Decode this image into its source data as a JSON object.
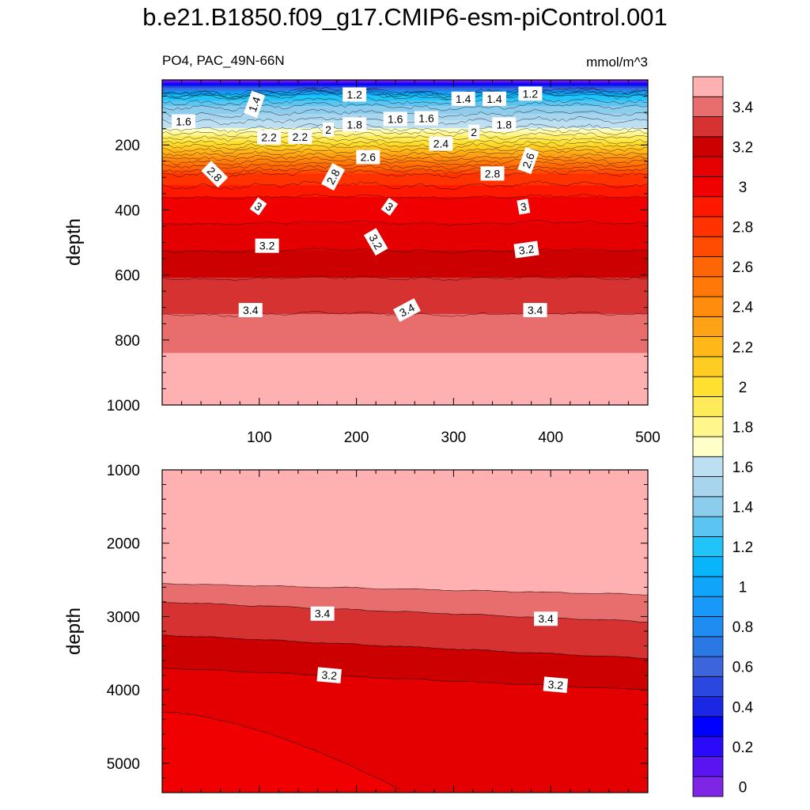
{
  "title": "b.e21.B1850.f09_g17.CMIP6-esm-piControl.001",
  "chart_data": {
    "type": "heatmap",
    "variable_label": "PO4, PAC_49N-66N",
    "units": "mmol/m^3",
    "colorbar": {
      "levels": [
        0,
        0.1,
        0.2,
        0.3,
        0.4,
        0.5,
        0.6,
        0.7,
        0.8,
        0.9,
        1.0,
        1.1,
        1.2,
        1.3,
        1.4,
        1.5,
        1.6,
        1.7,
        1.8,
        1.9,
        2.0,
        2.1,
        2.2,
        2.3,
        2.4,
        2.5,
        2.6,
        2.7,
        2.8,
        2.9,
        3.0,
        3.1,
        3.2,
        3.3,
        3.4,
        3.5
      ],
      "colors": [
        "#7F25E6",
        "#5A14F2",
        "#2A0AF8",
        "#0000FF",
        "#1A28E6",
        "#2A48E0",
        "#3C64DC",
        "#2A78E6",
        "#1E8CF0",
        "#1898F8",
        "#10A4FA",
        "#08B4FA",
        "#20C4F8",
        "#5CC4F0",
        "#8CCCEC",
        "#A8D4EE",
        "#BCE0F2",
        "#FFFFC8",
        "#FFF68C",
        "#FFEA5A",
        "#FFE030",
        "#FFCC24",
        "#FFB818",
        "#FFA214",
        "#FF8C0C",
        "#FF7808",
        "#FF6405",
        "#FF4C02",
        "#FF3200",
        "#FF1800",
        "#F00000",
        "#E40000",
        "#CC0000",
        "#D63232",
        "#E86E6E",
        "#FFB0B0"
      ],
      "tick_labels": [
        "0",
        "0.2",
        "0.4",
        "0.6",
        "0.8",
        "1",
        "1.2",
        "1.4",
        "1.6",
        "1.8",
        "2",
        "2.2",
        "2.4",
        "2.6",
        "2.8",
        "3",
        "3.2",
        "3.4"
      ]
    },
    "panels": [
      {
        "name": "upper",
        "x_range": [
          0,
          500
        ],
        "y_range": [
          0,
          1000
        ],
        "x_tick_labels": [
          "100",
          "200",
          "300",
          "400",
          "500"
        ],
        "y_tick_labels": [
          "200",
          "400",
          "600",
          "800",
          "1000"
        ],
        "ylabel": "depth",
        "contour_depths": [
          [
            0,
            0
          ],
          [
            1.2,
            50
          ],
          [
            1.4,
            82
          ],
          [
            1.6,
            125
          ],
          [
            1.7,
            148
          ],
          [
            1.8,
            160
          ],
          [
            2.0,
            188
          ],
          [
            2.2,
            212
          ],
          [
            2.4,
            238
          ],
          [
            2.6,
            262
          ],
          [
            2.8,
            288
          ],
          [
            3.0,
            360
          ],
          [
            3.1,
            440
          ],
          [
            3.2,
            525
          ],
          [
            3.3,
            610
          ],
          [
            3.4,
            720
          ],
          [
            3.5,
            840
          ]
        ],
        "contour_labels": [
          {
            "text": "1.2",
            "x": 198,
            "y": 45,
            "angle": 0
          },
          {
            "text": "1.2",
            "x": 379,
            "y": 42,
            "angle": 0
          },
          {
            "text": "1.4",
            "x": 95,
            "y": 75,
            "angle": -70
          },
          {
            "text": "1.4",
            "x": 310,
            "y": 58,
            "angle": 0
          },
          {
            "text": "1.4",
            "x": 342,
            "y": 58,
            "angle": 0
          },
          {
            "text": "1.6",
            "x": 22,
            "y": 128,
            "angle": 0
          },
          {
            "text": "1.6",
            "x": 240,
            "y": 120,
            "angle": 0
          },
          {
            "text": "1.6",
            "x": 272,
            "y": 118,
            "angle": 0
          },
          {
            "text": "1.8",
            "x": 198,
            "y": 137,
            "angle": 0
          },
          {
            "text": "1.8",
            "x": 352,
            "y": 137,
            "angle": 0
          },
          {
            "text": "2",
            "x": 171,
            "y": 153,
            "angle": 0
          },
          {
            "text": "2",
            "x": 321,
            "y": 160,
            "angle": 0
          },
          {
            "text": "2.2",
            "x": 110,
            "y": 177,
            "angle": 0
          },
          {
            "text": "2.2",
            "x": 142,
            "y": 175,
            "angle": 0
          },
          {
            "text": "2.4",
            "x": 287,
            "y": 196,
            "angle": 0
          },
          {
            "text": "2.6",
            "x": 212,
            "y": 237,
            "angle": 0
          },
          {
            "text": "2.6",
            "x": 377,
            "y": 248,
            "angle": -70
          },
          {
            "text": "2.8",
            "x": 54,
            "y": 290,
            "angle": 45
          },
          {
            "text": "2.8",
            "x": 176,
            "y": 298,
            "angle": -62
          },
          {
            "text": "2.8",
            "x": 340,
            "y": 288,
            "angle": 0
          },
          {
            "text": "3",
            "x": 99,
            "y": 389,
            "angle": 35
          },
          {
            "text": "3",
            "x": 234,
            "y": 390,
            "angle": 35
          },
          {
            "text": "3",
            "x": 372,
            "y": 390,
            "angle": -10
          },
          {
            "text": "3.2",
            "x": 108,
            "y": 510,
            "angle": 0
          },
          {
            "text": "3.2",
            "x": 220,
            "y": 498,
            "angle": 60
          },
          {
            "text": "3.2",
            "x": 375,
            "y": 522,
            "angle": -8
          },
          {
            "text": "3.4",
            "x": 91,
            "y": 708,
            "angle": 0
          },
          {
            "text": "3.4",
            "x": 252,
            "y": 708,
            "angle": -28
          },
          {
            "text": "3.4",
            "x": 384,
            "y": 708,
            "angle": 0
          }
        ]
      },
      {
        "name": "lower",
        "x_range": [
          0,
          500
        ],
        "y_range": [
          1000,
          5400
        ],
        "x_tick_labels": [],
        "y_tick_labels": [
          "1000",
          "2000",
          "3000",
          "4000",
          "5000"
        ],
        "ylabel": "depth",
        "contour_lines": [
          {
            "level": 3.5,
            "left": 2550,
            "right": 2700
          },
          {
            "level": 3.4,
            "left": 2800,
            "right": 3070
          },
          {
            "level": 3.3,
            "left": 3250,
            "right": 3570
          },
          {
            "level": 3.2,
            "left": 3700,
            "right": 4000
          }
        ],
        "contour_labels": [
          {
            "text": "3.4",
            "x": 165,
            "y": 2960,
            "angle": 0
          },
          {
            "text": "3.4",
            "x": 395,
            "y": 3030,
            "angle": 0
          },
          {
            "text": "3.2",
            "x": 172,
            "y": 3800,
            "angle": 5
          },
          {
            "text": "3.2",
            "x": 405,
            "y": 3930,
            "angle": 5
          }
        ]
      }
    ]
  }
}
